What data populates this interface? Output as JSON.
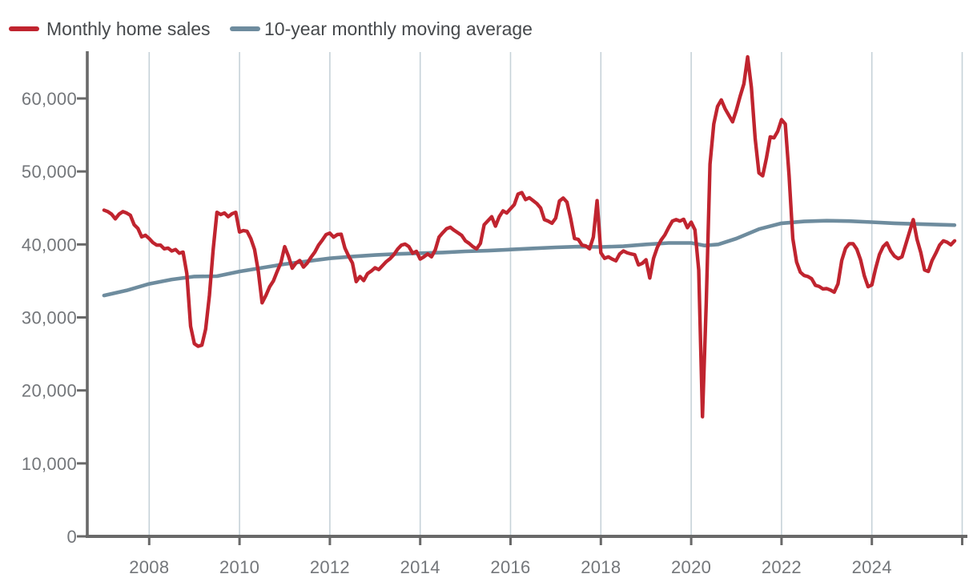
{
  "legend": {
    "series": [
      {
        "label": "Monthly home sales",
        "color": "#c0242f"
      },
      {
        "label": "10-year monthly moving average",
        "color": "#6e8c9e"
      }
    ]
  },
  "axes": {
    "y": {
      "ticks": [
        {
          "value": 0,
          "label": "0"
        },
        {
          "value": 10000,
          "label": "10,000"
        },
        {
          "value": 20000,
          "label": "20,000"
        },
        {
          "value": 30000,
          "label": "30,000"
        },
        {
          "value": 40000,
          "label": "40,000"
        },
        {
          "value": 50000,
          "label": "50,000"
        },
        {
          "value": 60000,
          "label": "60,000"
        }
      ]
    },
    "x": {
      "labeled_ticks": [
        {
          "value": 2008,
          "label": "2008"
        },
        {
          "value": 2010,
          "label": "2010"
        },
        {
          "value": 2012,
          "label": "2012"
        },
        {
          "value": 2014,
          "label": "2014"
        },
        {
          "value": 2016,
          "label": "2016"
        },
        {
          "value": 2018,
          "label": "2018"
        },
        {
          "value": 2020,
          "label": "2020"
        },
        {
          "value": 2022,
          "label": "2022"
        },
        {
          "value": 2024,
          "label": "2024"
        }
      ],
      "unlabeled_tick_values": [
        2026
      ]
    }
  },
  "colors": {
    "monthly_sales_line": "#c0242f",
    "moving_average_line": "#6e8c9e",
    "gridline": "#c6d2d8",
    "axis_line": "#696969",
    "tick_label": "#73767a",
    "legend_text": "#46494c",
    "background": "#ffffff"
  },
  "chart_data": {
    "type": "line",
    "title": "",
    "xlabel": "",
    "ylabel": "",
    "grid": "vertical-only",
    "legend_position": "top-left",
    "xlim": [
      2006.75,
      2026.3
    ],
    "ylim": [
      0,
      66300
    ],
    "series": [
      {
        "name": "Monthly home sales",
        "color": "#c0242f",
        "frequency": "monthly",
        "start": "2007-01",
        "end": "2025-11",
        "values": [
          44700,
          44500,
          44150,
          43500,
          44150,
          44500,
          44300,
          44000,
          42700,
          42200,
          41050,
          41250,
          40800,
          40250,
          39900,
          39900,
          39400,
          39500,
          39100,
          39300,
          38800,
          38950,
          36000,
          28800,
          26400,
          26050,
          26200,
          28400,
          33000,
          39300,
          44400,
          44100,
          44300,
          43800,
          44200,
          44400,
          41700,
          41900,
          41800,
          40800,
          39300,
          36300,
          32000,
          33000,
          34200,
          35000,
          36300,
          37500,
          39700,
          38400,
          36750,
          37450,
          37800,
          36900,
          37450,
          38250,
          38950,
          39900,
          40600,
          41350,
          41550,
          41000,
          41350,
          41400,
          39500,
          38400,
          37450,
          34900,
          35600,
          35050,
          36000,
          36350,
          36800,
          36550,
          37100,
          37650,
          38050,
          38600,
          39350,
          39900,
          40050,
          39700,
          38800,
          39050,
          38000,
          38300,
          38700,
          38300,
          39250,
          41000,
          41600,
          42150,
          42350,
          41950,
          41600,
          41250,
          40500,
          40150,
          39700,
          39400,
          40150,
          42700,
          43250,
          43800,
          42500,
          43800,
          44600,
          44300,
          44900,
          45450,
          46900,
          47100,
          46150,
          46400,
          46000,
          45600,
          45000,
          43400,
          43200,
          42900,
          43600,
          45950,
          46350,
          45800,
          43500,
          40800,
          40700,
          39900,
          39800,
          39400,
          41000,
          46000,
          38850,
          38100,
          38300,
          38000,
          37750,
          38700,
          39100,
          38850,
          38700,
          38600,
          37200,
          37400,
          37900,
          35400,
          38100,
          39600,
          40600,
          41300,
          42300,
          43200,
          43400,
          43200,
          43450,
          42300,
          43050,
          42000,
          36500,
          16400,
          32000,
          51000,
          56500,
          58900,
          59800,
          58600,
          57700,
          56800,
          58400,
          60300,
          62000,
          65700,
          61500,
          54500,
          49800,
          49400,
          51850,
          54750,
          54600,
          55500,
          57100,
          56500,
          49500,
          40800,
          37600,
          36200,
          35750,
          35600,
          35300,
          34400,
          34250,
          33900,
          33950,
          33750,
          33450,
          34600,
          37800,
          39450,
          40100,
          40100,
          39350,
          37900,
          35700,
          34200,
          34450,
          36700,
          38600,
          39700,
          40200,
          39100,
          38400,
          38050,
          38300,
          40000,
          41700,
          43400,
          40700,
          38900,
          36500,
          36300,
          37800,
          38800,
          39900,
          40500,
          40300,
          39950,
          40500
        ]
      },
      {
        "name": "10-year monthly moving average",
        "color": "#6e8c9e",
        "points": [
          [
            2007.0,
            33000
          ],
          [
            2007.5,
            33700
          ],
          [
            2008.0,
            34600
          ],
          [
            2008.5,
            35200
          ],
          [
            2009.0,
            35600
          ],
          [
            2009.5,
            35650
          ],
          [
            2010.0,
            36300
          ],
          [
            2010.5,
            36800
          ],
          [
            2011.0,
            37300
          ],
          [
            2011.5,
            37700
          ],
          [
            2012.0,
            38100
          ],
          [
            2012.5,
            38350
          ],
          [
            2013.0,
            38550
          ],
          [
            2013.5,
            38700
          ],
          [
            2014.0,
            38800
          ],
          [
            2014.5,
            38900
          ],
          [
            2015.0,
            39050
          ],
          [
            2015.5,
            39150
          ],
          [
            2016.0,
            39300
          ],
          [
            2016.5,
            39450
          ],
          [
            2017.0,
            39600
          ],
          [
            2017.5,
            39700
          ],
          [
            2018.0,
            39650
          ],
          [
            2018.5,
            39750
          ],
          [
            2019.0,
            40000
          ],
          [
            2019.5,
            40200
          ],
          [
            2020.0,
            40200
          ],
          [
            2020.3,
            39850
          ],
          [
            2020.6,
            40000
          ],
          [
            2021.0,
            40800
          ],
          [
            2021.5,
            42100
          ],
          [
            2022.0,
            42900
          ],
          [
            2022.5,
            43150
          ],
          [
            2023.0,
            43250
          ],
          [
            2023.5,
            43200
          ],
          [
            2024.0,
            43050
          ],
          [
            2024.5,
            42900
          ],
          [
            2025.0,
            42800
          ],
          [
            2025.83,
            42650
          ]
        ]
      }
    ]
  }
}
